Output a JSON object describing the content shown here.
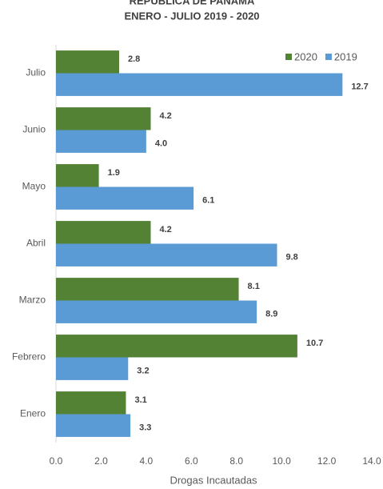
{
  "chart_data": {
    "type": "hbar",
    "title": "REPÚBLICA DE PANAMÁ",
    "subtitle": "ENERO - JULIO 2019 - 2020",
    "x_label": "Drogas Incautadas",
    "categories": [
      "Julio",
      "Junio",
      "Mayo",
      "Abril",
      "Marzo",
      "Febrero",
      "Enero"
    ],
    "series": [
      {
        "name": "2020",
        "color": "#548235",
        "values": [
          2.8,
          4.2,
          1.9,
          4.2,
          8.1,
          10.7,
          3.1
        ],
        "value_labels": [
          "2.8",
          "4.2",
          "1.9",
          "4.2",
          "8.1",
          "10.7",
          "3.1"
        ]
      },
      {
        "name": "2019",
        "color": "#5b9bd5",
        "values": [
          12.7,
          4.0,
          6.1,
          9.8,
          8.9,
          3.2,
          3.3
        ],
        "value_labels": [
          "12.7",
          "4.0",
          "6.1",
          "9.8",
          "8.9",
          "3.2",
          "3.3"
        ]
      }
    ],
    "xlim": [
      0,
      14
    ],
    "xticks": [
      {
        "value": 0,
        "label": "0.0"
      },
      {
        "value": 2,
        "label": "2.0"
      },
      {
        "value": 4,
        "label": "4.0"
      },
      {
        "value": 6,
        "label": "6.0"
      },
      {
        "value": 8,
        "label": "8.0"
      },
      {
        "value": 10,
        "label": "10.0"
      },
      {
        "value": 12,
        "label": "12.0"
      },
      {
        "value": 14,
        "label": "14.0"
      }
    ],
    "grid": false,
    "legend": "top-right"
  }
}
